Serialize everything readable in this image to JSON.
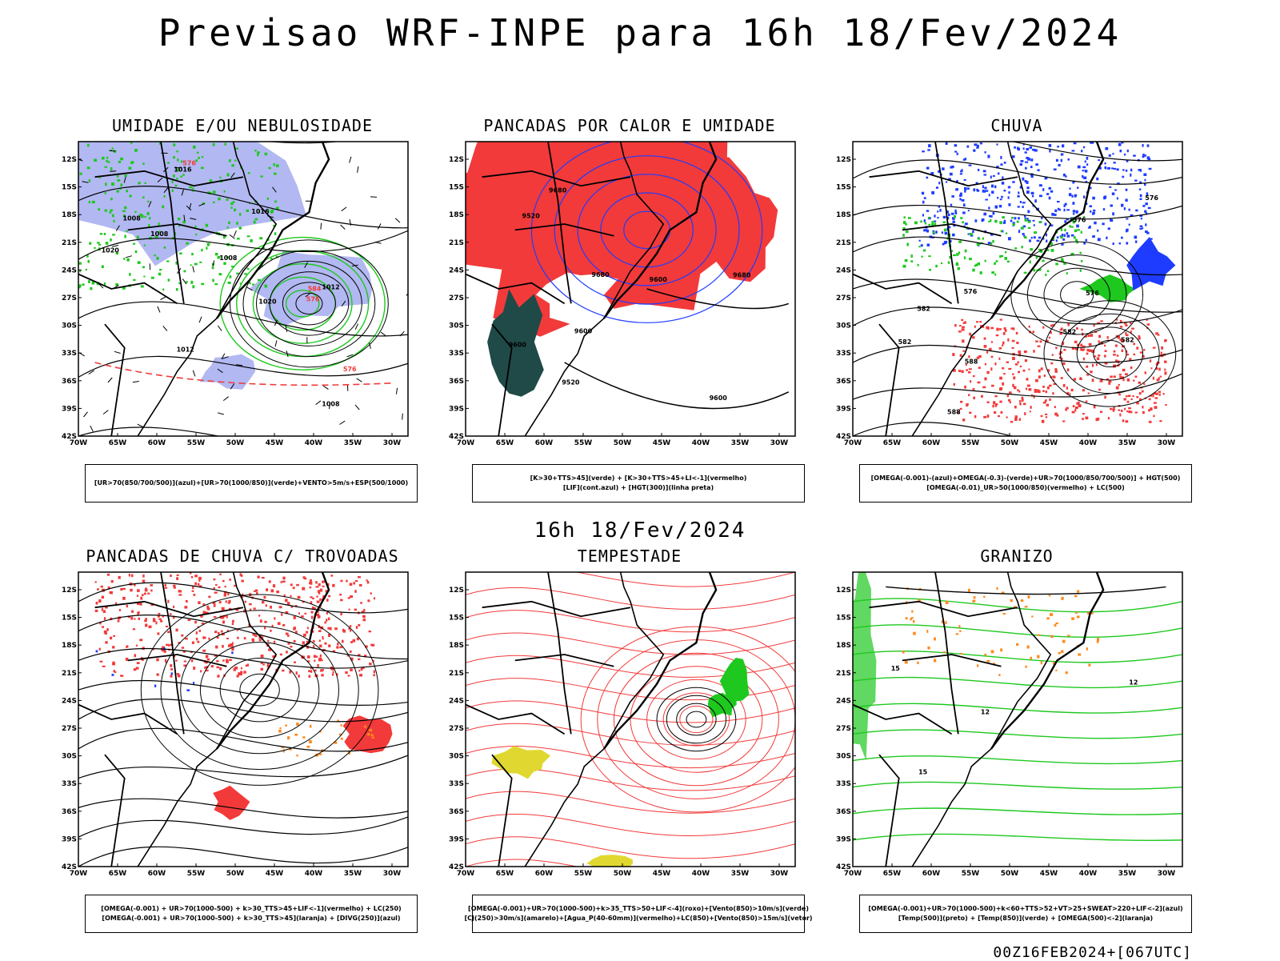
{
  "title": "Previsao WRF-INPE  para 16h 18/Fev/2024",
  "mid_label": "16h 18/Fev/2024",
  "footer": "00Z16FEB2024+[067UTC]",
  "axes": {
    "lat": [
      "12S",
      "15S",
      "18S",
      "21S",
      "24S",
      "27S",
      "30S",
      "33S",
      "36S",
      "39S",
      "42S"
    ],
    "lon": [
      "70W",
      "65W",
      "60W",
      "55W",
      "50W",
      "45W",
      "40W",
      "35W",
      "30W"
    ]
  },
  "colors": {
    "red": "#f23a3a",
    "green": "#1ec81e",
    "blue": "#1e3cff",
    "lavender": "#aab0f0",
    "dark_teal": "#1f4a48",
    "orange": "#ff8a1e",
    "yellow": "#e0d830"
  },
  "panels": [
    {
      "id": "umidade",
      "title": "UMIDADE E/OU NEBULOSIDADE",
      "legend": [
        "[UR>70(850/700/500)](azul)+[UR>70(1000/850)](verde)+VENTO>5m/s+ESP(500/1000)"
      ],
      "contour_labels": [
        "1008",
        "1008",
        "1008",
        "1016",
        "1012",
        "1016",
        "1020",
        "1020",
        "576",
        "576",
        "576",
        "584",
        "1008",
        "1012"
      ]
    },
    {
      "id": "pancadas_calor",
      "title": "PANCADAS POR CALOR E UMIDADE",
      "legend": [
        "[K>30+TTS>45](verde) + [K>30+TTS>45+LI<-1](vermelho)",
        "[LIF](cont.azul) + [HGT(300)](linha preta)"
      ],
      "contour_labels": [
        "9680",
        "9680",
        "9680",
        "9600",
        "9600",
        "9520",
        "9600",
        "9520",
        "9600"
      ]
    },
    {
      "id": "chuva",
      "title": "CHUVA",
      "legend": [
        "[OMEGA(-0.001)-(azul)+OMEGA(-0.3)-(verde)+UR>70(1000/850/700/500)] + HGT(500)",
        "[OMEGA(-0.01)_UR>50(1000/850)(vermelho) + LC(500)"
      ],
      "contour_labels": [
        "588",
        "582",
        "576",
        "588",
        "582",
        "576",
        "582",
        "576",
        "576",
        "582"
      ]
    },
    {
      "id": "pancadas_trovoadas",
      "title": "PANCADAS DE CHUVA C/ TROVOADAS",
      "legend": [
        "[OMEGA(-0.001) + UR>70(1000-500) + k>30_TTS>45+LIF<-1](vermelho) + LC(250)",
        "[OMEGA(-0.001) + UR>70(1000-500) + k>30_TTS>45](laranja) + [DIVG(250)](azul)"
      ],
      "contour_labels": []
    },
    {
      "id": "tempestade",
      "title": "TEMPESTADE",
      "legend": [
        "[OMEGA(-0.001)+UR>70(1000-500)+k>35_TTS>50+LIF<-4](roxo)+[Vento(850)>10m/s](verde)",
        "[CJ(250)>30m/s](amarelo)+[Agua_P(40-60mm)](vermelho)+LC(850)+[Vento(850)>15m/s](vetor)"
      ],
      "contour_labels": []
    },
    {
      "id": "granizo",
      "title": "GRANIZO",
      "legend": [
        "[OMEGA(-0.001)+UR>70(1000-500)+k<60+TTS>52+VT>25+SWEAT>220+LIF<-2](azul)",
        "[Temp(500)](preto) + [Temp(850)](verde) + [OMEGA(500)<-2](laranja)"
      ],
      "contour_labels": [
        "12",
        "15",
        "15",
        "12"
      ]
    }
  ]
}
